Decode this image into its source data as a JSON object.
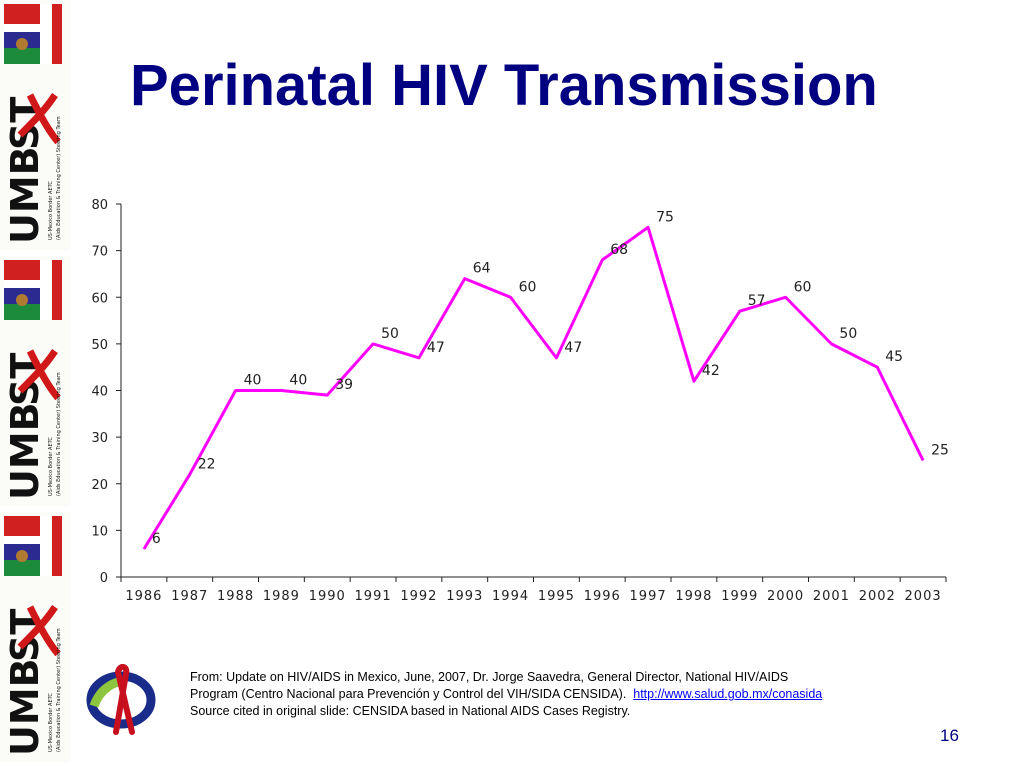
{
  "slide": {
    "title": "Perinatal HIV Transmission",
    "page_number": "16",
    "logo_text": "UMBPST",
    "logo_subtext_1": "US-Mexico Border AETC",
    "logo_subtext_2": "(Aids Education & Training Center) Steering Team"
  },
  "source": {
    "line1": "From: Update on HIV/AIDS in Mexico, June, 2007, Dr. Jorge Saavedra, General Director, National HIV/AIDS",
    "line2": "Program (Centro Nacional para Prevención y Control del VIH/SIDA CENSIDA).",
    "link": "http://www.salud.gob.mx/conasida",
    "line3": "Source cited in original slide: CENSIDA based in National AIDS Cases Registry."
  },
  "colors": {
    "title": "#000080",
    "line": "#ff00ff",
    "axis": "#222222",
    "link": "#0000ff"
  },
  "chart_data": {
    "type": "line",
    "title": "",
    "xlabel": "",
    "ylabel": "",
    "categories": [
      "1986",
      "1987",
      "1988",
      "1989",
      "1990",
      "1991",
      "1992",
      "1993",
      "1994",
      "1995",
      "1996",
      "1997",
      "1998",
      "1999",
      "2000",
      "2001",
      "2002",
      "2003"
    ],
    "series": [
      {
        "values": [
          6,
          22,
          40,
          40,
          39,
          50,
          47,
          64,
          60,
          47,
          68,
          75,
          42,
          57,
          60,
          50,
          45,
          25
        ]
      }
    ],
    "ylim": [
      0,
      80
    ],
    "yticks": [
      0,
      10,
      20,
      30,
      40,
      50,
      60,
      70,
      80
    ],
    "grid": false,
    "data_labels": true,
    "color": "#ff00ff"
  }
}
